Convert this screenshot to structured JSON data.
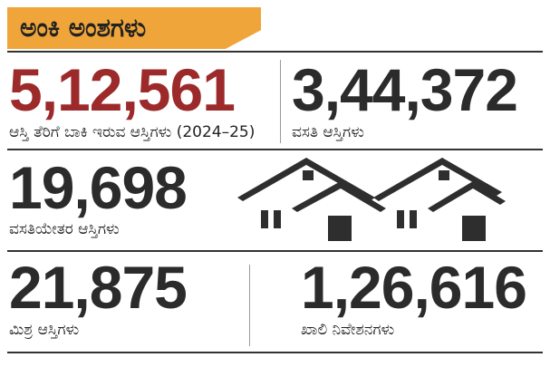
{
  "header": {
    "title": "ಅಂಕಿ ಅಂಶಗಳು",
    "color": "#f0a53a"
  },
  "stats": [
    {
      "value": "5,12,561",
      "label": "ಆಸ್ತಿ ತೆರಿಗೆ ಬಾಕಿ ಇರುವ ಆಸ್ತಿಗಳು (2024–25)",
      "color": "#9c2a2a"
    },
    {
      "value": "3,44,372",
      "label": "ವಸತಿ ಆಸ್ತಿಗಳು"
    },
    {
      "value": "19,698",
      "label": "ವಸತಿಯೇತರ ಆಸ್ತಿಗಳು"
    },
    {
      "value": "21,875",
      "label": "ಮಿಶ್ರ ಆಸ್ತಿಗಳು"
    },
    {
      "value": "1,26,616",
      "label": "ಖಾಲಿ ನಿವೇಶನಗಳು"
    }
  ],
  "illustration": {
    "icon": "houses-icon",
    "color": "#2e2e2e"
  }
}
